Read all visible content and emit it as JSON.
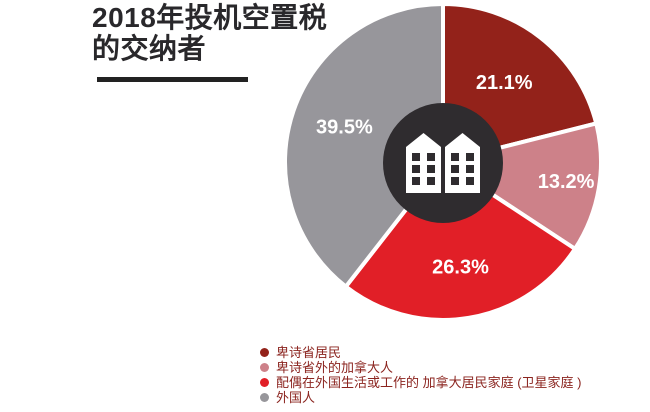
{
  "title": {
    "line1": "2018年投机空置税",
    "line2": "的交纳者"
  },
  "chart_data": {
    "type": "pie",
    "title": "2018年投机空置税的交纳者",
    "start_angle_deg": 0,
    "direction": "clockwise",
    "slices": [
      {
        "label": "卑诗省居民",
        "value": 21.1,
        "display": "21.1%",
        "color": "#93221a"
      },
      {
        "label": "卑诗省外的加拿大人",
        "value": 13.2,
        "display": "13.2%",
        "color": "#cd8189"
      },
      {
        "label": "配偶在外国生活或工作的 加拿大居民家庭 (卫星家庭 )",
        "value": 26.3,
        "display": "26.3%",
        "color": "#e11f27"
      },
      {
        "label": "外国人",
        "value": 39.5,
        "display": "39.5%",
        "color": "#97969b"
      }
    ],
    "slice_label_color": "#ffffff",
    "center_circle_color": "#2f2c2f",
    "center_icon": "buildings-icon",
    "center_icon_color": "#ffffff",
    "legend_position": "bottom-center",
    "legend_text_color": "#8b241f",
    "grid": false
  }
}
